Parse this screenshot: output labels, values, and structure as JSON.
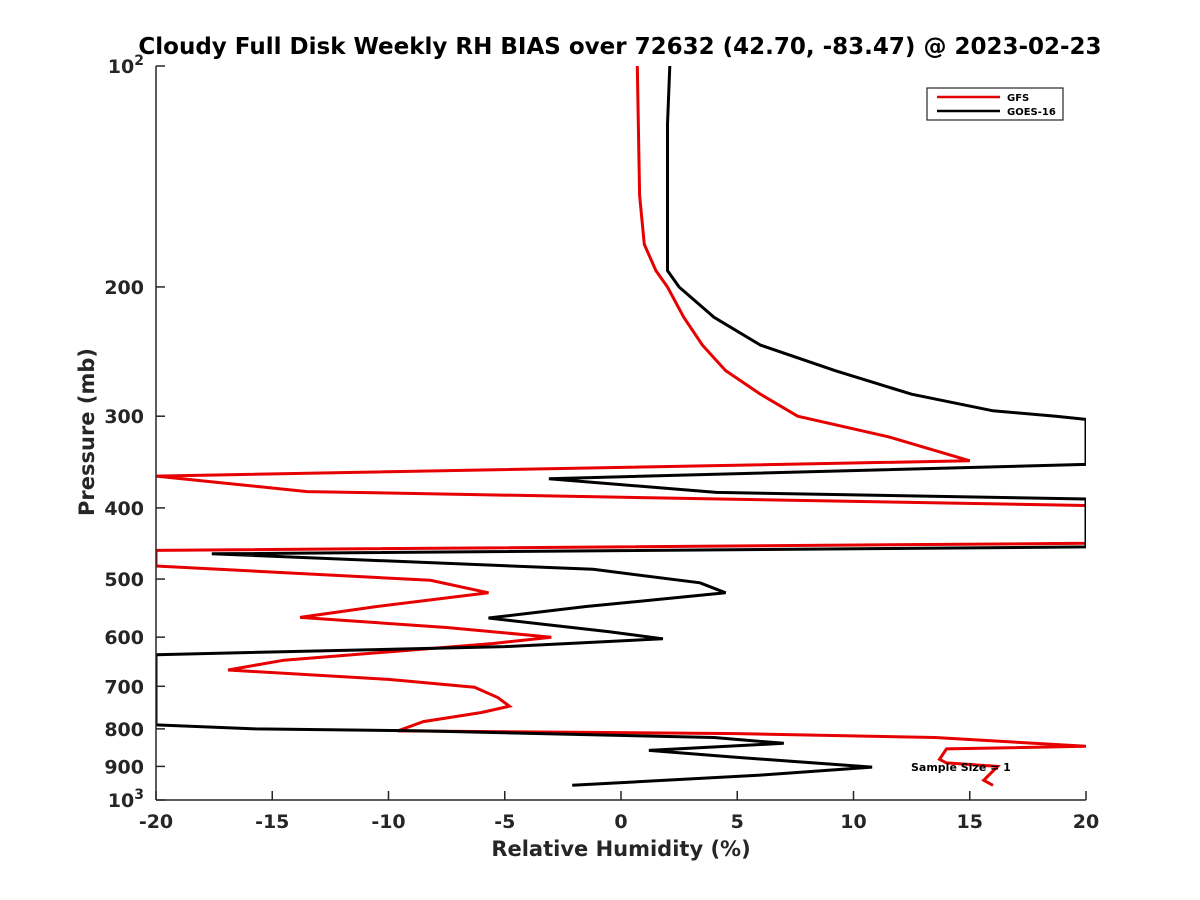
{
  "chart_data": {
    "type": "line",
    "title": "Cloudy Full Disk Weekly RH BIAS over 72632 (42.70, -83.47) @ 2023-02-23",
    "xlabel": "Relative Humidity (%)",
    "ylabel": "Pressure (mb)",
    "xlim": [
      -20,
      20
    ],
    "ylim": [
      100,
      1000
    ],
    "y_scale": "log",
    "y_reversed": true,
    "x_ticks": [
      {
        "value": -20,
        "label": "-20"
      },
      {
        "value": -15,
        "label": "-15"
      },
      {
        "value": -10,
        "label": "-10"
      },
      {
        "value": -5,
        "label": "-5"
      },
      {
        "value": 0,
        "label": "0"
      },
      {
        "value": 5,
        "label": "5"
      },
      {
        "value": 10,
        "label": "10"
      },
      {
        "value": 15,
        "label": "15"
      },
      {
        "value": 20,
        "label": "20"
      }
    ],
    "y_ticks": [
      {
        "value": 100,
        "label": "10",
        "sup": "2"
      },
      {
        "value": 200,
        "label": "200"
      },
      {
        "value": 300,
        "label": "300"
      },
      {
        "value": 400,
        "label": "400"
      },
      {
        "value": 500,
        "label": "500"
      },
      {
        "value": 600,
        "label": "600"
      },
      {
        "value": 700,
        "label": "700"
      },
      {
        "value": 800,
        "label": "800"
      },
      {
        "value": 900,
        "label": "900"
      },
      {
        "value": 1000,
        "label": "10",
        "sup": "3"
      }
    ],
    "legend_position": "top-right",
    "grid": false,
    "annotation": "Sample Size = 1",
    "series": [
      {
        "name": "GFS",
        "color": "#e60000",
        "points": [
          [
            0.7,
            100
          ],
          [
            0.8,
            150
          ],
          [
            1.0,
            175
          ],
          [
            1.5,
            190
          ],
          [
            2.0,
            200
          ],
          [
            2.7,
            220
          ],
          [
            3.5,
            240
          ],
          [
            4.5,
            260
          ],
          [
            6.0,
            280
          ],
          [
            7.6,
            300
          ],
          [
            11.5,
            320
          ],
          [
            15.0,
            345
          ],
          [
            -20.0,
            362
          ],
          [
            -13.5,
            380
          ],
          [
            20.0,
            397
          ],
          [
            20.0,
            447
          ],
          [
            -20.0,
            457
          ],
          [
            -20.0,
            480
          ],
          [
            -8.2,
            502
          ],
          [
            -5.7,
            522
          ],
          [
            -10.5,
            545
          ],
          [
            -13.8,
            564
          ],
          [
            -7.5,
            582
          ],
          [
            -3.0,
            600
          ],
          [
            -5.5,
            612
          ],
          [
            -14.5,
            645
          ],
          [
            -16.9,
            665
          ],
          [
            -10.0,
            685
          ],
          [
            -6.3,
            702
          ],
          [
            -5.3,
            725
          ],
          [
            -4.8,
            745
          ],
          [
            -6.0,
            760
          ],
          [
            -8.5,
            782
          ],
          [
            -9.6,
            805
          ],
          [
            5.0,
            812
          ],
          [
            13.5,
            822
          ],
          [
            20.0,
            845
          ],
          [
            14.0,
            852
          ],
          [
            13.7,
            880
          ],
          [
            14.0,
            890
          ],
          [
            16.2,
            900
          ],
          [
            15.6,
            940
          ],
          [
            16.0,
            955
          ]
        ]
      },
      {
        "name": "GOES-16",
        "color": "#000000",
        "points": [
          [
            2.1,
            100
          ],
          [
            2.0,
            120
          ],
          [
            2.0,
            150
          ],
          [
            2.0,
            190
          ],
          [
            2.5,
            200
          ],
          [
            4.0,
            220
          ],
          [
            6.0,
            240
          ],
          [
            9.2,
            260
          ],
          [
            12.5,
            280
          ],
          [
            16.0,
            295
          ],
          [
            18.7,
            300
          ],
          [
            20.0,
            303
          ],
          [
            20.0,
            349
          ],
          [
            -3.1,
            365
          ],
          [
            4.1,
            381
          ],
          [
            20.0,
            389
          ],
          [
            20.0,
            452
          ],
          [
            -17.6,
            462
          ],
          [
            -1.2,
            485
          ],
          [
            3.4,
            506
          ],
          [
            4.5,
            522
          ],
          [
            -1.5,
            545
          ],
          [
            -5.7,
            565
          ],
          [
            -0.5,
            590
          ],
          [
            1.8,
            603
          ],
          [
            -5.0,
            618
          ],
          [
            -20.0,
            634
          ],
          [
            -20.0,
            790
          ],
          [
            -15.7,
            800
          ],
          [
            -8.5,
            805
          ],
          [
            4.0,
            822
          ],
          [
            7.0,
            837
          ],
          [
            1.2,
            856
          ],
          [
            5.0,
            875
          ],
          [
            10.8,
            902
          ],
          [
            6.0,
            925
          ],
          [
            -2.1,
            955
          ]
        ]
      }
    ]
  }
}
